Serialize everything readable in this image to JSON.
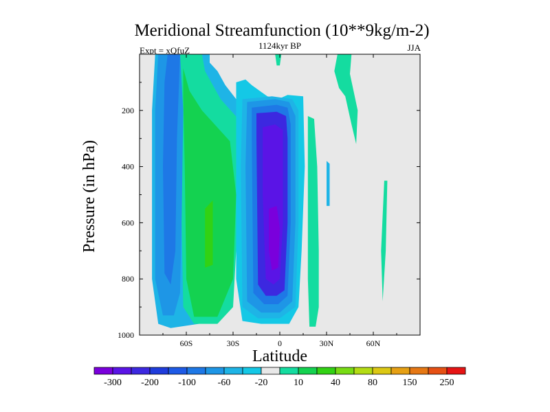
{
  "chart_data": {
    "type": "heatmap",
    "title": "Meridional Streamfunction (10**9kg/m-2)",
    "subtitle_center": "1124kyr BP",
    "subtitle_left": "Expt = xQfuZ",
    "subtitle_right": "JJA",
    "xlabel": "Latitude",
    "ylabel": "Pressure (in hPa)",
    "xlim": [
      -90,
      90
    ],
    "ylim": [
      0,
      1000
    ],
    "x_ticks": [
      {
        "value": -60,
        "label": "60S"
      },
      {
        "value": -30,
        "label": "30S"
      },
      {
        "value": 0,
        "label": "0"
      },
      {
        "value": 30,
        "label": "30N"
      },
      {
        "value": 60,
        "label": "60N"
      }
    ],
    "y_ticks": [
      {
        "value": 200,
        "label": "200"
      },
      {
        "value": 400,
        "label": "400"
      },
      {
        "value": 600,
        "label": "600"
      },
      {
        "value": 800,
        "label": "800"
      },
      {
        "value": 1000,
        "label": "1000"
      }
    ],
    "background_color": "#e8e8e8",
    "colorbar": {
      "colors": [
        "#7a00dc",
        "#5a14e6",
        "#3c28e0",
        "#1f3cdc",
        "#1e5ae6",
        "#1e78e6",
        "#1e96e6",
        "#1eb4e6",
        "#14c8e6",
        "#e8e8e8",
        "#14dca0",
        "#14d250",
        "#32d214",
        "#78dc14",
        "#b4dc14",
        "#dcc814",
        "#e6a014",
        "#e67814",
        "#e65014",
        "#e61414"
      ],
      "tick_labels": [
        "-300",
        "-200",
        "-100",
        "-60",
        "-20",
        "10",
        "40",
        "80",
        "150",
        "250"
      ]
    },
    "contour_regions": [
      {
        "level": "-20",
        "color": "#1eb4e6",
        "points": [
          [
            -80,
            0
          ],
          [
            -45,
            0
          ],
          [
            -45,
            30
          ],
          [
            -40,
            60
          ],
          [
            -35,
            110
          ],
          [
            -28,
            160
          ],
          [
            -20,
            200
          ],
          [
            -22,
            250
          ],
          [
            -30,
            300
          ],
          [
            -40,
            400
          ],
          [
            -42,
            600
          ],
          [
            -40,
            900
          ],
          [
            -52,
            960
          ],
          [
            -70,
            975
          ],
          [
            -78,
            960
          ],
          [
            -82,
            800
          ],
          [
            -82,
            200
          ]
        ]
      },
      {
        "level": "-60",
        "color": "#1e96e6",
        "points": [
          [
            -78,
            0
          ],
          [
            -60,
            0
          ],
          [
            -62,
            300
          ],
          [
            -63,
            600
          ],
          [
            -64,
            850
          ],
          [
            -68,
            930
          ],
          [
            -75,
            930
          ],
          [
            -80,
            800
          ],
          [
            -80,
            200
          ]
        ]
      },
      {
        "level": "-100",
        "color": "#1e78e6",
        "points": [
          [
            -72,
            0
          ],
          [
            -64,
            0
          ],
          [
            -66,
            300
          ],
          [
            -67,
            700
          ],
          [
            -70,
            820
          ],
          [
            -74,
            780
          ],
          [
            -75,
            400
          ],
          [
            -74,
            100
          ]
        ]
      },
      {
        "level": "10",
        "color": "#14dca0",
        "points": [
          [
            -64,
            0
          ],
          [
            -50,
            0
          ],
          [
            -48,
            60
          ],
          [
            -38,
            160
          ],
          [
            -25,
            240
          ],
          [
            -25,
            400
          ],
          [
            -28,
            700
          ],
          [
            -30,
            900
          ],
          [
            -40,
            960
          ],
          [
            -55,
            960
          ],
          [
            -62,
            900
          ],
          [
            -63,
            600
          ],
          [
            -62,
            200
          ]
        ]
      },
      {
        "level": "40",
        "color": "#14d250",
        "points": [
          [
            -62,
            50
          ],
          [
            -58,
            130
          ],
          [
            -50,
            200
          ],
          [
            -32,
            310
          ],
          [
            -28,
            500
          ],
          [
            -30,
            800
          ],
          [
            -40,
            935
          ],
          [
            -55,
            935
          ],
          [
            -60,
            800
          ],
          [
            -61,
            400
          ],
          [
            -62,
            150
          ]
        ]
      },
      {
        "level": "80",
        "color": "#32d214",
        "points": [
          [
            -48,
            550
          ],
          [
            -43,
            520
          ],
          [
            -43,
            750
          ],
          [
            -48,
            760
          ]
        ]
      },
      {
        "level": "-20",
        "color": "#14c8e6",
        "points": [
          [
            -28,
            100
          ],
          [
            -22,
            90
          ],
          [
            -18,
            110
          ],
          [
            -8,
            150
          ],
          [
            -1,
            160
          ],
          [
            5,
            145
          ],
          [
            15,
            150
          ],
          [
            16,
            400
          ],
          [
            14,
            700
          ],
          [
            12,
            900
          ],
          [
            6,
            960
          ],
          [
            -12,
            960
          ],
          [
            -24,
            950
          ],
          [
            -28,
            800
          ],
          [
            -28,
            400
          ],
          [
            -28,
            200
          ]
        ]
      },
      {
        "level": "-60",
        "color": "#1eb4e6",
        "points": [
          [
            -24,
            160
          ],
          [
            -5,
            150
          ],
          [
            8,
            160
          ],
          [
            12,
            200
          ],
          [
            12,
            600
          ],
          [
            10,
            900
          ],
          [
            0,
            940
          ],
          [
            -14,
            940
          ],
          [
            -24,
            900
          ],
          [
            -25,
            400
          ]
        ]
      },
      {
        "level": "-100",
        "color": "#1e96e6",
        "points": [
          [
            -21,
            170
          ],
          [
            -3,
            160
          ],
          [
            6,
            170
          ],
          [
            10,
            220
          ],
          [
            10,
            600
          ],
          [
            8,
            880
          ],
          [
            0,
            920
          ],
          [
            -12,
            920
          ],
          [
            -21,
            880
          ],
          [
            -22,
            400
          ]
        ]
      },
      {
        "level": "-150",
        "color": "#1e78e6",
        "points": [
          [
            -18,
            190
          ],
          [
            -2,
            180
          ],
          [
            5,
            190
          ],
          [
            7,
            250
          ],
          [
            7,
            600
          ],
          [
            5,
            860
          ],
          [
            -1,
            890
          ],
          [
            -10,
            890
          ],
          [
            -17,
            850
          ],
          [
            -18,
            300
          ]
        ]
      },
      {
        "level": "-200",
        "color": "#3c28e0",
        "points": [
          [
            -15,
            210
          ],
          [
            -2,
            205
          ],
          [
            4,
            220
          ],
          [
            5,
            300
          ],
          [
            5,
            600
          ],
          [
            3,
            840
          ],
          [
            -2,
            860
          ],
          [
            -9,
            860
          ],
          [
            -14,
            820
          ],
          [
            -15,
            300
          ]
        ]
      },
      {
        "level": "-250",
        "color": "#5a14e6",
        "points": [
          [
            -11,
            260
          ],
          [
            -3,
            250
          ],
          [
            2,
            270
          ],
          [
            2,
            600
          ],
          [
            0,
            800
          ],
          [
            -4,
            820
          ],
          [
            -9,
            800
          ],
          [
            -11,
            500
          ]
        ]
      },
      {
        "level": "-300",
        "color": "#7a00dc",
        "points": [
          [
            -7,
            550
          ],
          [
            -2,
            540
          ],
          [
            0,
            620
          ],
          [
            -1,
            760
          ],
          [
            -5,
            770
          ],
          [
            -7,
            700
          ]
        ]
      },
      {
        "level": "10",
        "color": "#14dca0",
        "points": [
          [
            -3,
            0
          ],
          [
            1,
            0
          ],
          [
            0,
            40
          ],
          [
            -2,
            40
          ]
        ]
      },
      {
        "level": "10",
        "color": "#14dca0",
        "points": [
          [
            37,
            0
          ],
          [
            46,
            0
          ],
          [
            45,
            70
          ],
          [
            50,
            200
          ],
          [
            49,
            320
          ],
          [
            46,
            250
          ],
          [
            42,
            150
          ],
          [
            38,
            120
          ],
          [
            35,
            60
          ]
        ]
      },
      {
        "level": "10",
        "color": "#14dca0",
        "points": [
          [
            18,
            220
          ],
          [
            22,
            230
          ],
          [
            24,
            400
          ],
          [
            25,
            700
          ],
          [
            25,
            900
          ],
          [
            23,
            970
          ],
          [
            19,
            970
          ],
          [
            18,
            800
          ],
          [
            18,
            400
          ]
        ]
      },
      {
        "level": "-20",
        "color": "#1eb4e6",
        "points": [
          [
            30,
            380
          ],
          [
            32,
            390
          ],
          [
            32,
            540
          ],
          [
            30,
            540
          ]
        ]
      },
      {
        "level": "10",
        "color": "#14dca0",
        "points": [
          [
            67,
            450
          ],
          [
            69,
            450
          ],
          [
            68,
            700
          ],
          [
            66,
            880
          ],
          [
            65,
            700
          ]
        ]
      }
    ]
  }
}
